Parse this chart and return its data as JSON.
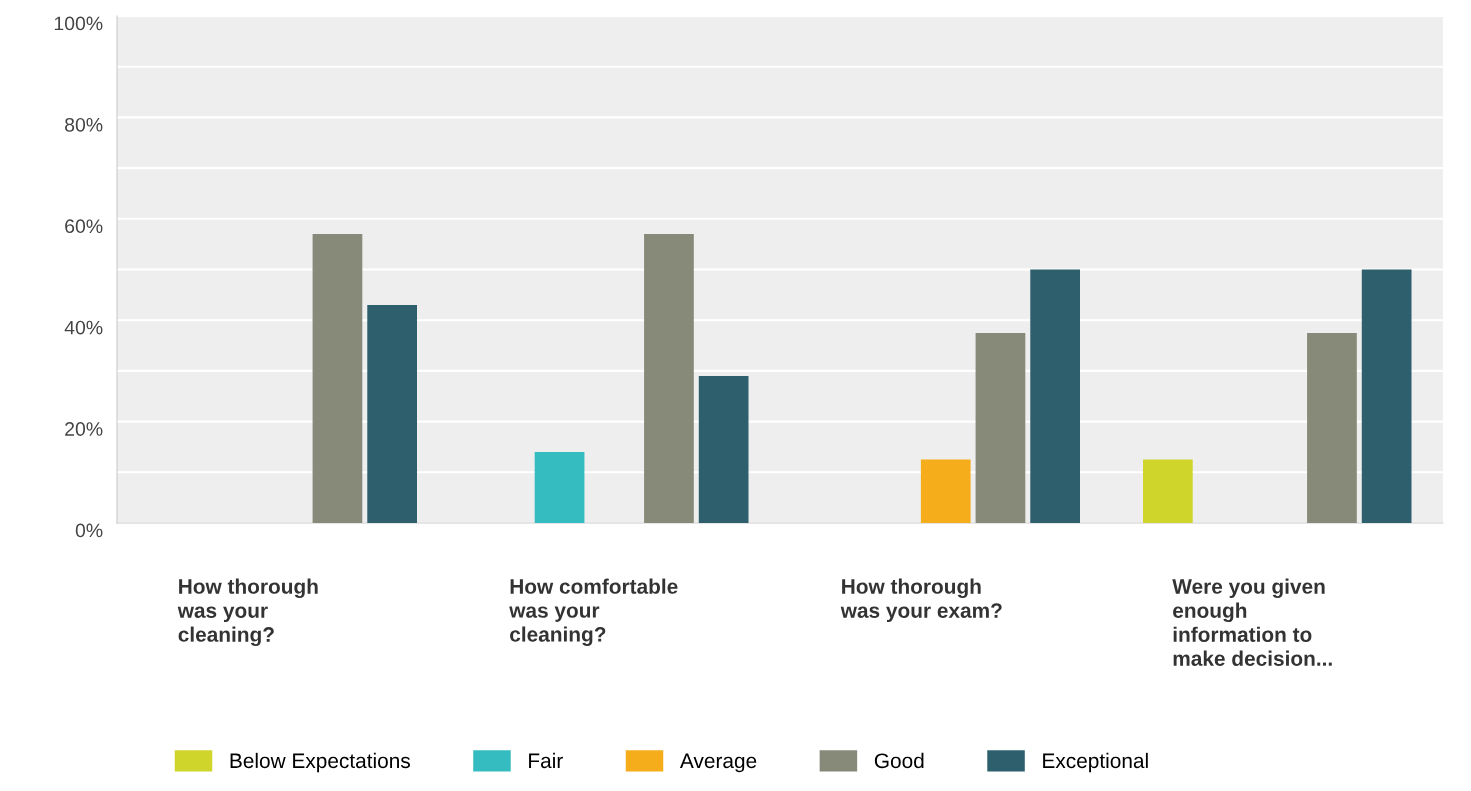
{
  "chart_data": {
    "type": "bar",
    "categories": [
      "How thorough\nwas your\ncleaning?",
      "How comfortable\nwas your\ncleaning?",
      "How thorough\nwas your exam?",
      "Were you given\nenough\ninformation to\nmake decision..."
    ],
    "series": [
      {
        "name": "Below Expectations",
        "color": "#cfd52a",
        "values": [
          0,
          0,
          0,
          12.5
        ]
      },
      {
        "name": "Fair",
        "color": "#35bcc0",
        "values": [
          0,
          14,
          0,
          0
        ]
      },
      {
        "name": "Average",
        "color": "#f5ad1c",
        "values": [
          0,
          0,
          12.5,
          0
        ]
      },
      {
        "name": "Good",
        "color": "#878a79",
        "values": [
          57,
          57,
          37.5,
          37.5
        ]
      },
      {
        "name": "Exceptional",
        "color": "#2d5f6c",
        "values": [
          43,
          29,
          50,
          50
        ]
      }
    ],
    "ylim": [
      0,
      100
    ],
    "yticks": [
      {
        "value": 0,
        "label": "0%"
      },
      {
        "value": 10,
        "label": null
      },
      {
        "value": 20,
        "label": "20%"
      },
      {
        "value": 30,
        "label": null
      },
      {
        "value": 40,
        "label": "40%"
      },
      {
        "value": 50,
        "label": null
      },
      {
        "value": 60,
        "label": "60%"
      },
      {
        "value": 70,
        "label": null
      },
      {
        "value": 80,
        "label": "80%"
      },
      {
        "value": 90,
        "label": null
      },
      {
        "value": 100,
        "label": "100%"
      }
    ],
    "grid": "y",
    "legend": "bottom"
  }
}
